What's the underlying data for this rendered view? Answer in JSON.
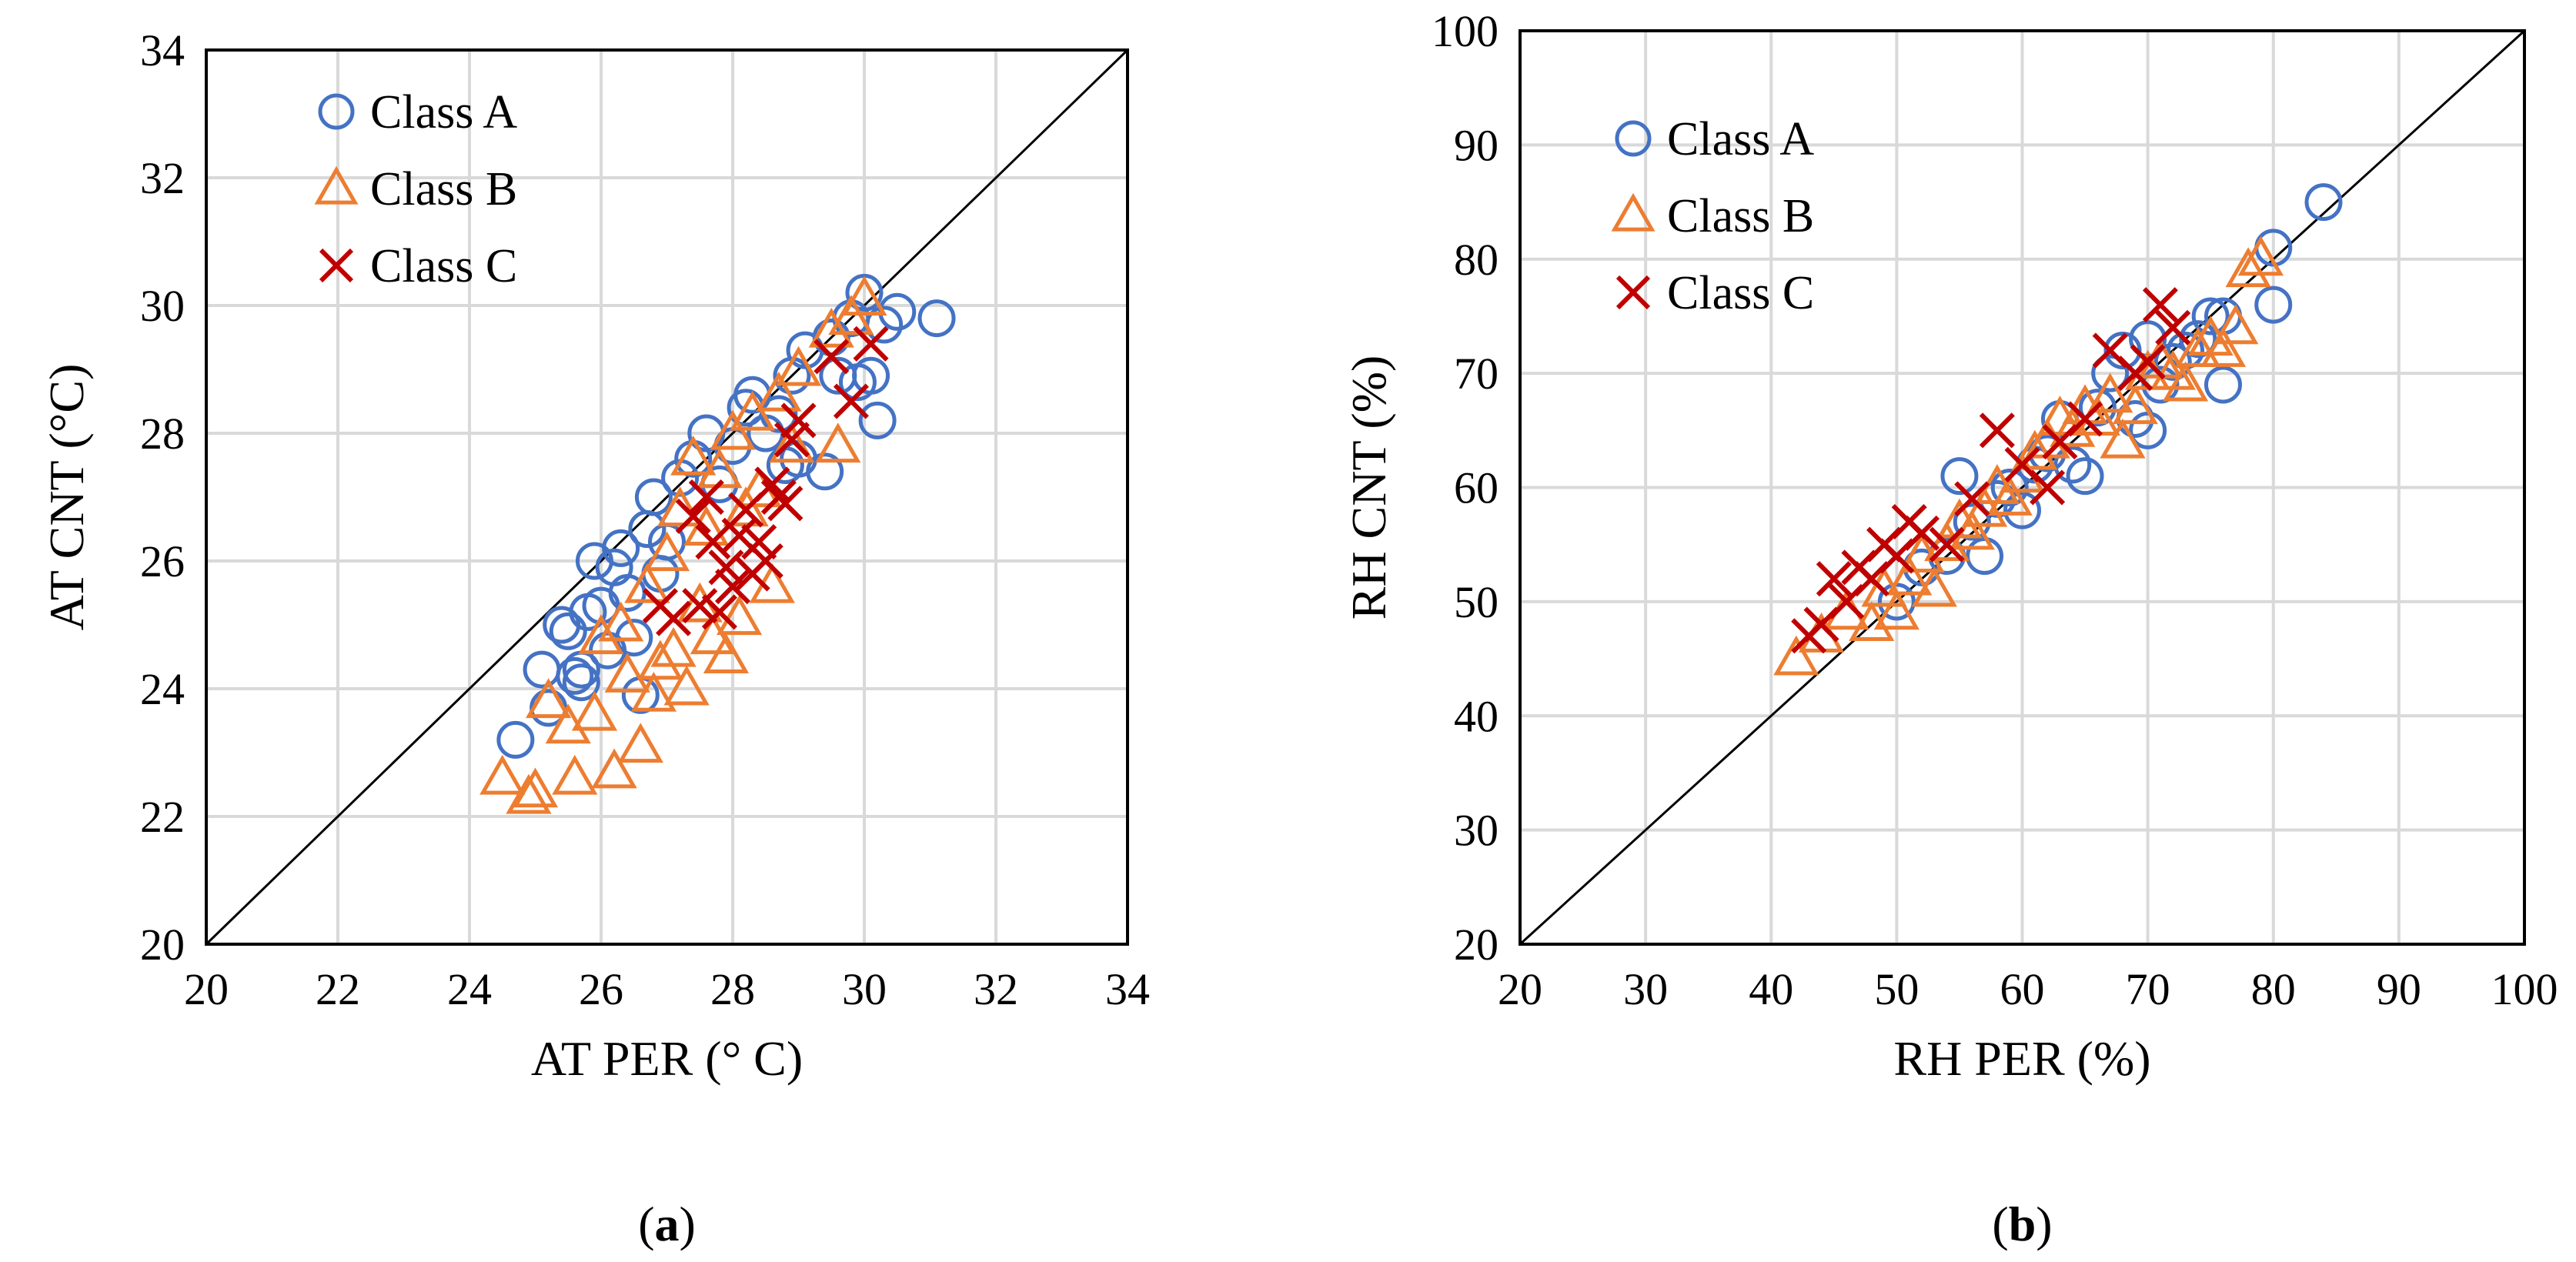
{
  "colors": {
    "class_a": "#4472c4",
    "class_b": "#ed7d31",
    "class_c": "#c00000",
    "grid": "#d9d9d9"
  },
  "chart_data": [
    {
      "type": "scatter",
      "caption_letter": "a",
      "xlabel": "AT PER (° C)",
      "ylabel": "AT CNT (°C)",
      "xlim": [
        20,
        34
      ],
      "ylim": [
        20,
        34
      ],
      "xticks": [
        20,
        22,
        24,
        26,
        28,
        30,
        32,
        34
      ],
      "yticks": [
        20,
        22,
        24,
        26,
        28,
        30,
        32,
        34
      ],
      "reference_line": "y = x",
      "legend": [
        "Class A",
        "Class B",
        "Class C"
      ],
      "series": [
        {
          "name": "Class A",
          "marker": "circle",
          "points": [
            [
              24.7,
              23.2
            ],
            [
              25.1,
              24.3
            ],
            [
              25.2,
              23.7
            ],
            [
              25.4,
              25.0
            ],
            [
              25.5,
              24.9
            ],
            [
              25.6,
              24.2
            ],
            [
              25.7,
              24.1
            ],
            [
              25.7,
              24.3
            ],
            [
              25.8,
              25.2
            ],
            [
              25.9,
              26.0
            ],
            [
              26.0,
              25.3
            ],
            [
              26.1,
              24.6
            ],
            [
              26.2,
              25.9
            ],
            [
              26.3,
              26.2
            ],
            [
              26.4,
              25.5
            ],
            [
              26.5,
              24.8
            ],
            [
              26.6,
              23.9
            ],
            [
              26.7,
              26.5
            ],
            [
              26.8,
              27.0
            ],
            [
              26.9,
              25.8
            ],
            [
              27.0,
              26.3
            ],
            [
              27.2,
              27.3
            ],
            [
              27.4,
              27.6
            ],
            [
              27.6,
              28.0
            ],
            [
              27.8,
              27.2
            ],
            [
              28.0,
              27.8
            ],
            [
              28.2,
              28.4
            ],
            [
              28.3,
              28.6
            ],
            [
              28.5,
              28.0
            ],
            [
              28.7,
              28.3
            ],
            [
              28.8,
              27.5
            ],
            [
              28.9,
              28.9
            ],
            [
              29.0,
              27.6
            ],
            [
              29.1,
              29.3
            ],
            [
              29.4,
              27.4
            ],
            [
              29.5,
              29.5
            ],
            [
              29.6,
              28.9
            ],
            [
              29.8,
              29.8
            ],
            [
              29.9,
              28.8
            ],
            [
              30.0,
              30.2
            ],
            [
              30.1,
              28.9
            ],
            [
              30.2,
              28.2
            ],
            [
              30.3,
              29.7
            ],
            [
              30.5,
              29.9
            ],
            [
              31.1,
              29.8
            ]
          ]
        },
        {
          "name": "Class B",
          "marker": "triangle",
          "points": [
            [
              24.5,
              22.6
            ],
            [
              24.9,
              22.3
            ],
            [
              25.0,
              22.4
            ],
            [
              25.2,
              23.8
            ],
            [
              25.5,
              23.4
            ],
            [
              25.6,
              22.6
            ],
            [
              25.9,
              23.6
            ],
            [
              26.0,
              24.8
            ],
            [
              26.2,
              22.7
            ],
            [
              26.3,
              25.0
            ],
            [
              26.4,
              24.2
            ],
            [
              26.6,
              23.1
            ],
            [
              26.7,
              25.6
            ],
            [
              26.8,
              23.9
            ],
            [
              26.9,
              24.4
            ],
            [
              27.0,
              26.1
            ],
            [
              27.1,
              24.6
            ],
            [
              27.2,
              26.8
            ],
            [
              27.3,
              24.0
            ],
            [
              27.4,
              27.6
            ],
            [
              27.5,
              25.3
            ],
            [
              27.6,
              26.5
            ],
            [
              27.7,
              24.8
            ],
            [
              27.8,
              27.4
            ],
            [
              27.9,
              24.5
            ],
            [
              28.0,
              28.0
            ],
            [
              28.1,
              25.1
            ],
            [
              28.2,
              26.8
            ],
            [
              28.3,
              28.3
            ],
            [
              28.4,
              27.1
            ],
            [
              28.6,
              25.6
            ],
            [
              28.7,
              28.6
            ],
            [
              28.9,
              27.8
            ],
            [
              29.0,
              29.0
            ],
            [
              29.5,
              29.6
            ],
            [
              29.6,
              27.8
            ],
            [
              29.8,
              29.8
            ],
            [
              30.0,
              30.1
            ]
          ]
        },
        {
          "name": "Class C",
          "marker": "x",
          "points": [
            [
              26.9,
              25.3
            ],
            [
              27.1,
              25.1
            ],
            [
              27.4,
              26.7
            ],
            [
              27.5,
              25.3
            ],
            [
              27.6,
              27.0
            ],
            [
              27.7,
              26.3
            ],
            [
              27.8,
              25.2
            ],
            [
              27.9,
              25.9
            ],
            [
              28.0,
              25.6
            ],
            [
              28.1,
              26.4
            ],
            [
              28.2,
              26.8
            ],
            [
              28.3,
              25.8
            ],
            [
              28.4,
              26.3
            ],
            [
              28.5,
              26.0
            ],
            [
              28.6,
              27.2
            ],
            [
              28.7,
              27.0
            ],
            [
              28.8,
              26.9
            ],
            [
              28.9,
              27.9
            ],
            [
              29.0,
              28.2
            ],
            [
              29.5,
              29.2
            ],
            [
              29.8,
              28.5
            ],
            [
              30.1,
              29.4
            ]
          ]
        }
      ]
    },
    {
      "type": "scatter",
      "caption_letter": "b",
      "xlabel": "RH PER (%)",
      "ylabel": "RH CNT (%)",
      "xlim": [
        20,
        100
      ],
      "ylim": [
        20,
        100
      ],
      "xticks": [
        20,
        30,
        40,
        50,
        60,
        70,
        80,
        90,
        100
      ],
      "yticks": [
        20,
        30,
        40,
        50,
        60,
        70,
        80,
        90,
        100
      ],
      "reference_line": "y = x",
      "legend": [
        "Class A",
        "Class B",
        "Class C"
      ],
      "series": [
        {
          "name": "Class A",
          "marker": "circle",
          "points": [
            [
              50,
              50
            ],
            [
              52,
              53
            ],
            [
              54,
              54
            ],
            [
              55,
              61
            ],
            [
              56,
              57
            ],
            [
              57,
              54
            ],
            [
              58,
              59
            ],
            [
              59,
              60
            ],
            [
              60,
              58
            ],
            [
              61,
              62
            ],
            [
              62,
              63
            ],
            [
              63,
              66
            ],
            [
              64,
              62
            ],
            [
              65,
              61
            ],
            [
              66,
              67
            ],
            [
              67,
              70
            ],
            [
              68,
              72
            ],
            [
              69,
              66
            ],
            [
              70,
              73
            ],
            [
              70,
              65
            ],
            [
              71,
              69
            ],
            [
              72,
              71
            ],
            [
              73,
              72
            ],
            [
              74,
              73
            ],
            [
              75,
              75
            ],
            [
              76,
              69
            ],
            [
              76,
              75
            ],
            [
              80,
              81
            ],
            [
              80,
              76
            ],
            [
              84,
              85
            ]
          ]
        },
        {
          "name": "Class B",
          "marker": "triangle",
          "points": [
            [
              42,
              45
            ],
            [
              44,
              47
            ],
            [
              46,
              49
            ],
            [
              48,
              48
            ],
            [
              49,
              51
            ],
            [
              50,
              49
            ],
            [
              51,
              52
            ],
            [
              52,
              54
            ],
            [
              53,
              51
            ],
            [
              54,
              55
            ],
            [
              55,
              57
            ],
            [
              56,
              56
            ],
            [
              57,
              58
            ],
            [
              58,
              60
            ],
            [
              59,
              59
            ],
            [
              60,
              61
            ],
            [
              61,
              63
            ],
            [
              62,
              64
            ],
            [
              63,
              66
            ],
            [
              64,
              65
            ],
            [
              65,
              67
            ],
            [
              66,
              66
            ],
            [
              67,
              68
            ],
            [
              68,
              64
            ],
            [
              69,
              67
            ],
            [
              70,
              70
            ],
            [
              71,
              71
            ],
            [
              72,
              70
            ],
            [
              73,
              69
            ],
            [
              74,
              72
            ],
            [
              75,
              73
            ],
            [
              76,
              72
            ],
            [
              77,
              74
            ],
            [
              78,
              79
            ],
            [
              79,
              80
            ]
          ]
        },
        {
          "name": "Class C",
          "marker": "x",
          "points": [
            [
              43,
              47
            ],
            [
              44,
              48
            ],
            [
              45,
              52
            ],
            [
              46,
              50
            ],
            [
              47,
              53
            ],
            [
              48,
              52
            ],
            [
              49,
              55
            ],
            [
              50,
              54
            ],
            [
              51,
              57
            ],
            [
              52,
              56
            ],
            [
              54,
              55
            ],
            [
              56,
              59
            ],
            [
              58,
              65
            ],
            [
              60,
              62
            ],
            [
              62,
              60
            ],
            [
              63,
              64
            ],
            [
              65,
              66
            ],
            [
              67,
              72
            ],
            [
              69,
              70
            ],
            [
              70,
              71
            ],
            [
              71,
              76
            ],
            [
              72,
              74
            ]
          ]
        }
      ]
    }
  ]
}
